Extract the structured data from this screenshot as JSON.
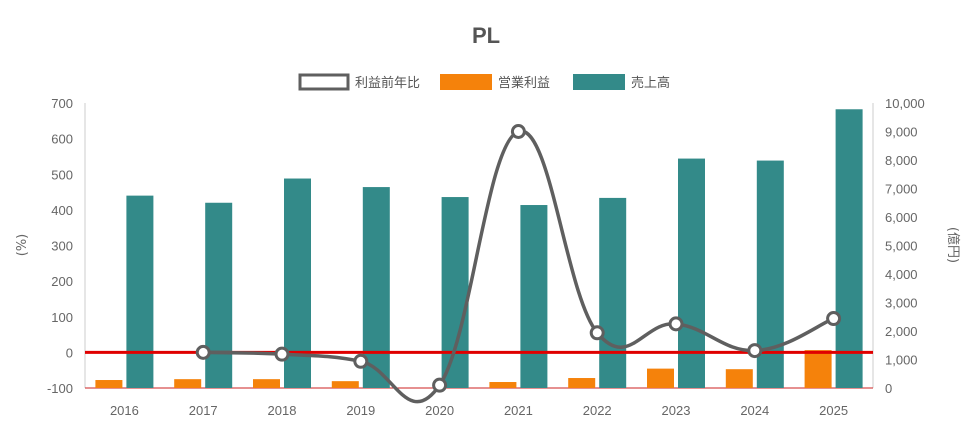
{
  "chart_data": {
    "type": "bar",
    "title": "PL",
    "categories": [
      "2016",
      "2017",
      "2018",
      "2019",
      "2020",
      "2021",
      "2022",
      "2023",
      "2024",
      "2025"
    ],
    "series": [
      {
        "name": "利益前年比",
        "type": "line",
        "axis": "left",
        "color": "#5f5f5f",
        "values": [
          null,
          0,
          -5,
          -25,
          -92,
          620,
          55,
          80,
          5,
          95
        ]
      },
      {
        "name": "営業利益",
        "type": "bar",
        "axis": "right",
        "color": "#f5820b",
        "values": [
          280,
          310,
          310,
          240,
          null,
          210,
          350,
          680,
          660,
          1330
        ]
      },
      {
        "name": "売上高",
        "type": "bar",
        "axis": "right",
        "color": "#338a89",
        "values": [
          6750,
          6500,
          7350,
          7050,
          6700,
          6420,
          6670,
          8050,
          7980,
          9780
        ]
      }
    ],
    "y_left": {
      "label": "(%)",
      "min": -100,
      "max": 700,
      "ticks": [
        "-100",
        "0",
        "100",
        "200",
        "300",
        "400",
        "500",
        "600",
        "700"
      ]
    },
    "y_right": {
      "label": "(億円)",
      "min": 0,
      "max": 10000,
      "ticks": [
        "0",
        "1,000",
        "2,000",
        "3,000",
        "4,000",
        "5,000",
        "6,000",
        "7,000",
        "8,000",
        "9,000",
        "10,000"
      ]
    },
    "reference_line": {
      "axis": "left",
      "value": 0,
      "color": "#e00000"
    },
    "legend_position": "top-center",
    "grid": false
  }
}
